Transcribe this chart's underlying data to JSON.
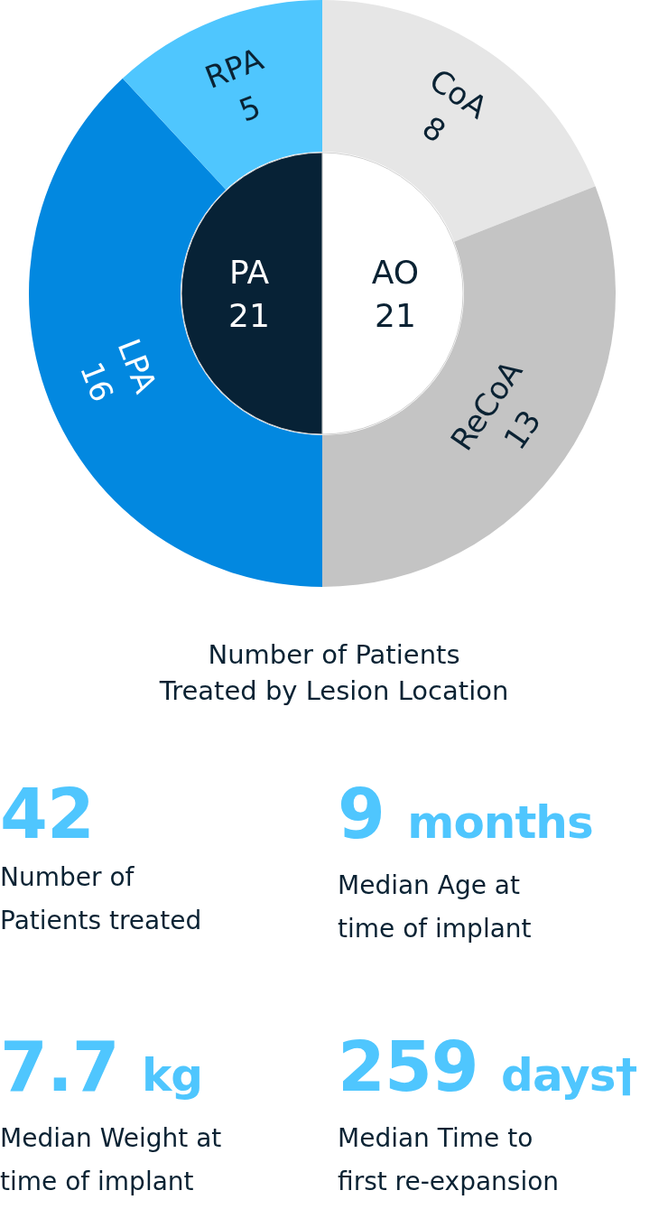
{
  "chart_data": [
    {
      "type": "pie",
      "categories": [
        "AO",
        "PA"
      ],
      "values": [
        21,
        21
      ],
      "colors": [
        "#ffffff",
        "#072236"
      ],
      "data_labels": true
    },
    {
      "type": "donut",
      "title": "Number of Patients\nTreated by Lesion Location",
      "categories": [
        "CoA",
        "ReCoA",
        "LPA",
        "RPA"
      ],
      "values": [
        8,
        13,
        16,
        5
      ],
      "colors": [
        "#e6e6e6",
        "#c4c4c4",
        "#0288e0",
        "#4fc6fe"
      ],
      "data_labels": true
    },
    {
      "type": "other",
      "annotations": [
        "42",
        "Number of\nPatients treated",
        "9 months",
        "Median Age at\ntime of implant",
        "7.7 kg",
        "Median Weight at\ntime of implant",
        "259 days†",
        "Median Time to\nfirst re-expansion"
      ]
    }
  ]
}
